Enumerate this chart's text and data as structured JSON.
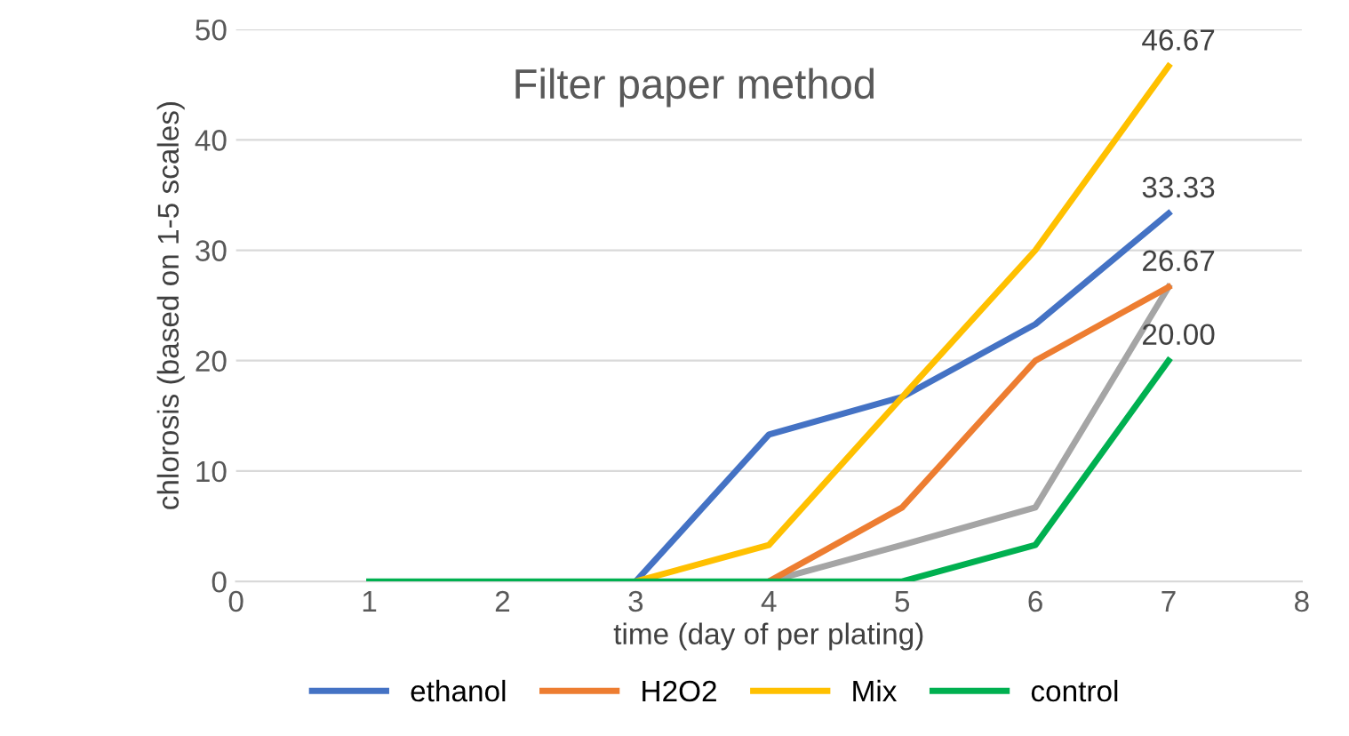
{
  "chart_data": {
    "type": "line",
    "title": "Filter paper method",
    "xlabel": "time (day of per plating)",
    "ylabel": "chlorosis (based on 1-5 scales)",
    "x": [
      1,
      2,
      3,
      4,
      5,
      6,
      7
    ],
    "series": [
      {
        "name": "ethanol",
        "color": "#4472c4",
        "values": [
          null,
          null,
          0,
          13.3,
          16.7,
          23.3,
          33.33
        ],
        "value_labels": [
          null,
          null,
          null,
          null,
          null,
          null,
          "33.33"
        ]
      },
      {
        "color": "#a5a5a5",
        "values": [
          null,
          null,
          null,
          0,
          3.3,
          6.7,
          26.67
        ],
        "value_labels": [
          null,
          null,
          null,
          null,
          null,
          null,
          "26.67"
        ]
      },
      {
        "name": "H2O2",
        "color": "#ed7d31",
        "values": [
          null,
          null,
          null,
          0,
          6.7,
          20,
          26.67
        ]
      },
      {
        "name": "Mix",
        "color": "#ffc000",
        "values": [
          null,
          null,
          0,
          3.3,
          16.7,
          30,
          46.67
        ],
        "value_labels": [
          null,
          null,
          null,
          null,
          null,
          null,
          "46.67"
        ]
      },
      {
        "name": "control",
        "color": "#00b050",
        "values": [
          0,
          0,
          0,
          0,
          0,
          3.3,
          20.0
        ],
        "value_labels": [
          null,
          null,
          null,
          null,
          null,
          null,
          "20.00"
        ]
      }
    ],
    "xlim": [
      0,
      8
    ],
    "xticks": [
      0,
      1,
      2,
      3,
      4,
      5,
      6,
      7,
      8
    ],
    "ylim": [
      0,
      50
    ],
    "yticks": [
      0,
      10,
      20,
      30,
      40,
      50
    ],
    "grid": "y",
    "legend": "bottom",
    "marker": "none",
    "line_style": "solid"
  }
}
